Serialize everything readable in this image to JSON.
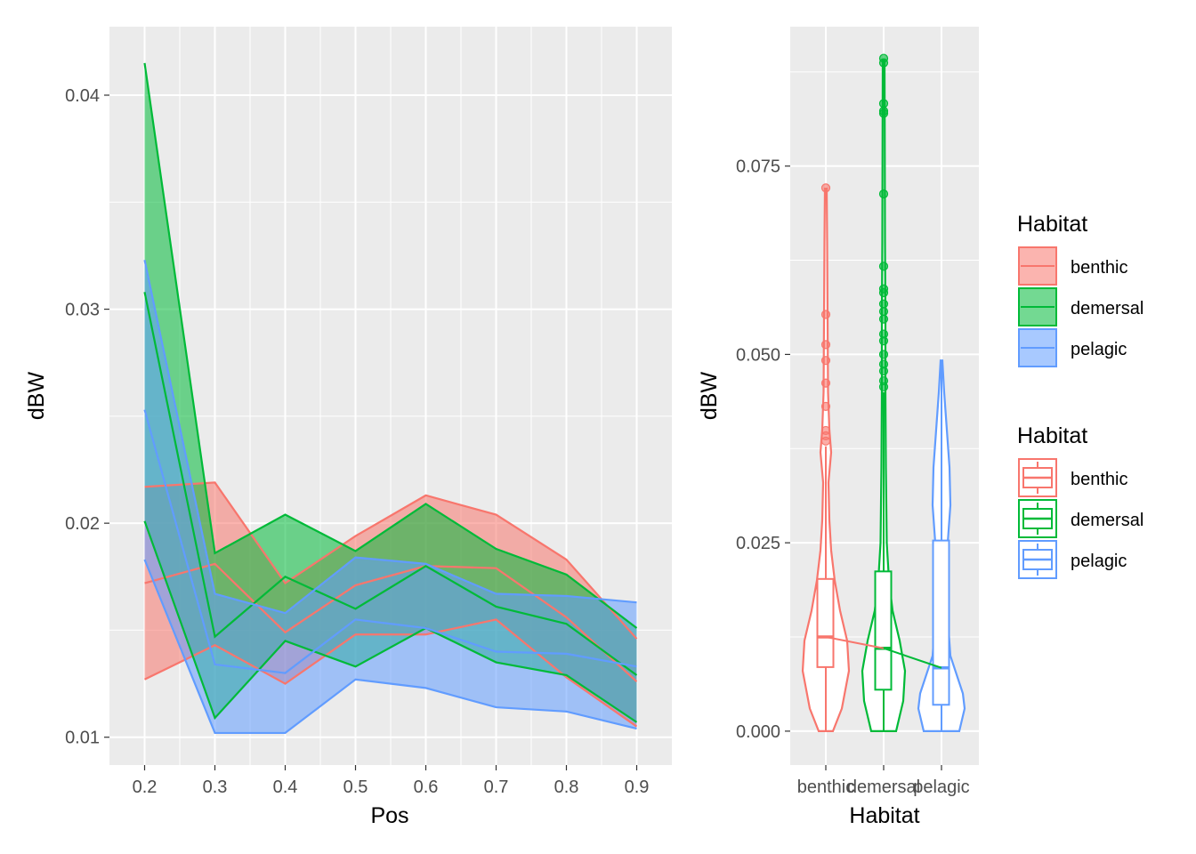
{
  "colors": {
    "benthic": "#F8766D",
    "demersal": "#00BA38",
    "pelagic": "#619CFF",
    "panel_bg": "#EBEBEB",
    "grid": "#FFFFFF"
  },
  "chart_data": [
    {
      "type": "area",
      "xlabel": "Pos",
      "ylabel": "dBW",
      "xlim": [
        0.15,
        0.95
      ],
      "ylim": [
        0.0087,
        0.0432
      ],
      "x_ticks": [
        "0.2",
        "0.3",
        "0.4",
        "0.5",
        "0.6",
        "0.7",
        "0.8",
        "0.9"
      ],
      "y_ticks": [
        "0.01",
        "0.02",
        "0.03",
        "0.04"
      ],
      "grid": true,
      "x": [
        0.2,
        0.3,
        0.4,
        0.5,
        0.6,
        0.7,
        0.8,
        0.9
      ],
      "series": [
        {
          "name": "benthic",
          "color": "#F8766D",
          "lower": [
            0.0127,
            0.0143,
            0.0125,
            0.0148,
            0.0148,
            0.0155,
            0.0128,
            0.0105
          ],
          "mean": [
            0.0172,
            0.0181,
            0.0149,
            0.0171,
            0.018,
            0.0179,
            0.0156,
            0.0126
          ],
          "upper": [
            0.0217,
            0.0219,
            0.0172,
            0.0194,
            0.0213,
            0.0204,
            0.0183,
            0.0146
          ]
        },
        {
          "name": "demersal",
          "color": "#00BA38",
          "lower": [
            0.0201,
            0.0109,
            0.0145,
            0.0133,
            0.0151,
            0.0135,
            0.0129,
            0.0107
          ],
          "mean": [
            0.0308,
            0.0147,
            0.0175,
            0.016,
            0.018,
            0.0161,
            0.0153,
            0.0129
          ],
          "upper": [
            0.0415,
            0.0186,
            0.0204,
            0.0187,
            0.0209,
            0.0188,
            0.0176,
            0.0151
          ]
        },
        {
          "name": "pelagic",
          "color": "#619CFF",
          "lower": [
            0.0183,
            0.0102,
            0.0102,
            0.0127,
            0.0123,
            0.0114,
            0.0112,
            0.0104
          ],
          "mean": [
            0.0253,
            0.0134,
            0.013,
            0.0155,
            0.0151,
            0.014,
            0.0139,
            0.0133
          ],
          "upper": [
            0.0323,
            0.0167,
            0.0158,
            0.0184,
            0.0181,
            0.0167,
            0.0166,
            0.0163
          ]
        }
      ]
    },
    {
      "type": "violin-box",
      "xlabel": "Habitat",
      "ylabel": "dBW",
      "ylim": [
        -0.0045,
        0.0935
      ],
      "y_ticks": [
        "0.000",
        "0.025",
        "0.050",
        "0.075"
      ],
      "categories": [
        "benthic",
        "demersal",
        "pelagic"
      ],
      "grid": true,
      "series": [
        {
          "name": "benthic",
          "color": "#F8766D",
          "min": 0.0,
          "q1": 0.0085,
          "median": 0.0125,
          "q3": 0.0202,
          "whisker_high": 0.0378,
          "violin_max": 0.072,
          "outliers": [
            0.0385,
            0.0392,
            0.0399,
            0.0431,
            0.0462,
            0.0492,
            0.0513,
            0.0553,
            0.0721
          ]
        },
        {
          "name": "demersal",
          "color": "#00BA38",
          "min": 0.0,
          "q1": 0.0055,
          "median": 0.011,
          "q3": 0.0212,
          "whisker_high": 0.045,
          "violin_max": 0.089,
          "outliers": [
            0.0457,
            0.0465,
            0.0478,
            0.0487,
            0.05,
            0.0518,
            0.0527,
            0.0547,
            0.0557,
            0.0567,
            0.0582,
            0.0587,
            0.0617,
            0.0713,
            0.082,
            0.0823,
            0.0833,
            0.0887,
            0.0893
          ]
        },
        {
          "name": "pelagic",
          "color": "#619CFF",
          "min": 0.0,
          "q1": 0.0035,
          "median": 0.0084,
          "q3": 0.0253,
          "whisker_high": 0.0492,
          "violin_max": 0.0492,
          "outliers": []
        }
      ]
    }
  ],
  "legends": [
    {
      "title": "Habitat",
      "kind": "fill",
      "items": [
        "benthic",
        "demersal",
        "pelagic"
      ]
    },
    {
      "title": "Habitat",
      "kind": "box",
      "items": [
        "benthic",
        "demersal",
        "pelagic"
      ]
    }
  ]
}
